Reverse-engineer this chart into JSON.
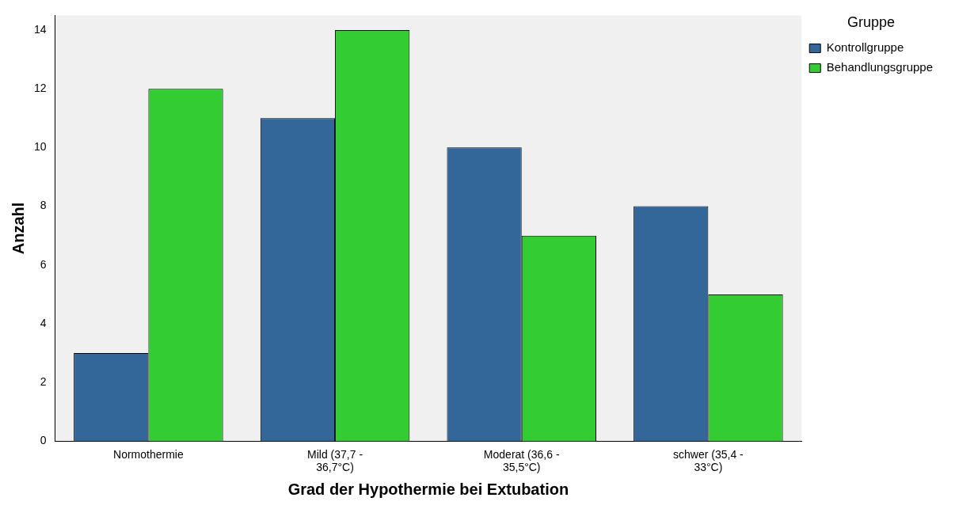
{
  "chart_data": {
    "type": "bar",
    "xlabel": "Grad der Hypothermie bei Extubation",
    "ylabel": "Anzahl",
    "legend_title": "Gruppe",
    "categories": [
      "Normothermie",
      "Mild (37,7 - 36,7°C)",
      "Moderat (36,6 - 35,5°C)",
      "schwer (35,4 - 33°C)"
    ],
    "series": [
      {
        "name": "Kontrollgruppe",
        "color": "#336699",
        "values": [
          3,
          11,
          10,
          8
        ]
      },
      {
        "name": "Behandlungsgruppe",
        "color": "#33cc33",
        "values": [
          12,
          14,
          7,
          5
        ]
      }
    ],
    "ylim": [
      0,
      14.5
    ],
    "yticks": [
      0,
      2,
      4,
      6,
      8,
      10,
      12,
      14
    ],
    "grid": false,
    "legend": "top right"
  }
}
